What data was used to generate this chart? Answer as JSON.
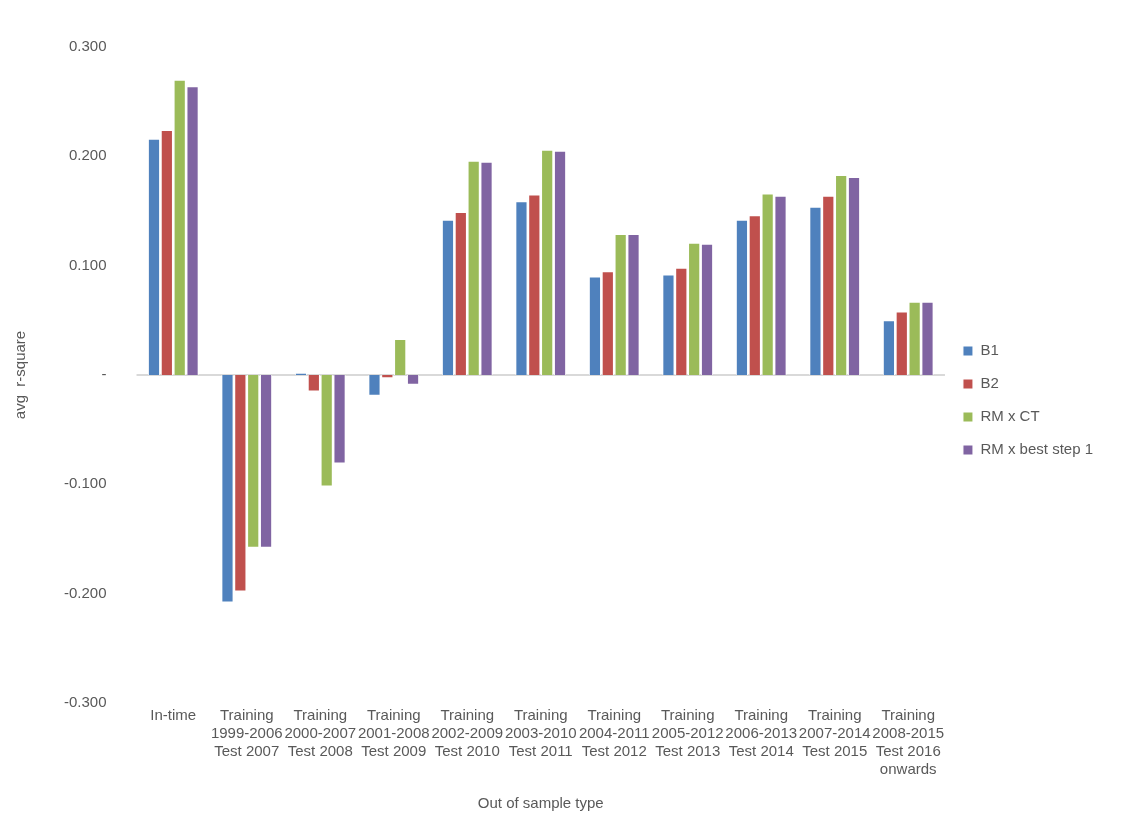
{
  "chart_data": {
    "type": "bar",
    "xlabel": "Out of sample type",
    "ylabel": "avg  r-square",
    "categories": [
      "In-time",
      "Training\n1999-2006\nTest 2007",
      "Training\n2000-2007\nTest 2008",
      "Training\n2001-2008\nTest 2009",
      "Training\n2002-2009\nTest 2010",
      "Training\n2003-2010\nTest 2011",
      "Training\n2004-2011\nTest 2012",
      "Training\n2005-2012\nTest 2013",
      "Training\n2006-2013\nTest 2014",
      "Training\n2007-2014\nTest 2015",
      "Training\n2008-2015\nTest 2016\nonwards"
    ],
    "series": [
      {
        "name": "B1",
        "color": "#4f81bd",
        "values": [
          0.216,
          -0.208,
          0.002,
          -0.019,
          0.142,
          0.159,
          0.09,
          0.092,
          0.142,
          0.154,
          0.05
        ]
      },
      {
        "name": "B2",
        "color": "#c0504d",
        "values": [
          0.224,
          -0.198,
          -0.015,
          -0.003,
          0.149,
          0.165,
          0.095,
          0.098,
          0.146,
          0.164,
          0.058
        ]
      },
      {
        "name": "RM x CT",
        "color": "#9bbb59",
        "values": [
          0.27,
          -0.158,
          -0.102,
          0.033,
          0.196,
          0.206,
          0.129,
          0.121,
          0.166,
          0.183,
          0.067
        ]
      },
      {
        "name": "RM x best step 1",
        "color": "#8064a2",
        "values": [
          0.264,
          -0.158,
          -0.081,
          -0.009,
          0.195,
          0.205,
          0.129,
          0.12,
          0.164,
          0.181,
          0.067
        ]
      }
    ],
    "ylim": [
      -0.3,
      0.3
    ],
    "yticks": [
      {
        "value": -0.3,
        "label": "-0.300"
      },
      {
        "value": -0.2,
        "label": "-0.200"
      },
      {
        "value": -0.1,
        "label": "-0.100"
      },
      {
        "value": 0,
        "label": "-"
      },
      {
        "value": 0.1,
        "label": "0.100"
      },
      {
        "value": 0.2,
        "label": "0.200"
      },
      {
        "value": 0.3,
        "label": "0.300"
      }
    ],
    "ref_lines": [
      {
        "axis": "y",
        "value": 0,
        "color": "#d9d9d9"
      }
    ],
    "grid": false,
    "legend": "right"
  }
}
